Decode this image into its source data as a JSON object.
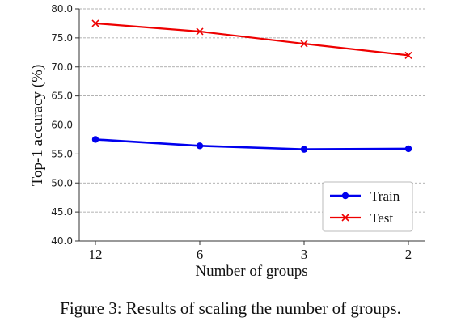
{
  "chart_data": {
    "type": "line",
    "categories": [
      "12",
      "6",
      "3",
      "2"
    ],
    "series": [
      {
        "name": "Train",
        "values": [
          57.5,
          56.4,
          55.8,
          55.9
        ],
        "color": "#0000ee",
        "marker": "circle"
      },
      {
        "name": "Test",
        "values": [
          77.5,
          76.1,
          74.0,
          72.0
        ],
        "color": "#ee0000",
        "marker": "x"
      }
    ],
    "title": "",
    "xlabel": "Number of groups",
    "ylabel": "Top-1 accuracy (%)",
    "ylim": [
      40.0,
      80.0
    ],
    "yticks": [
      "40.0",
      "45.0",
      "50.0",
      "55.0",
      "60.0",
      "65.0",
      "70.0",
      "75.0",
      "80.0"
    ],
    "grid": "horizontal dashed",
    "legend": "bottom-right"
  },
  "caption": "Figure 3: Results of scaling the number of groups."
}
